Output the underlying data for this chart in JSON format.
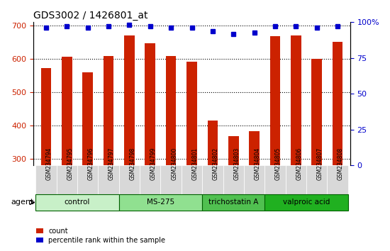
{
  "title": "GDS3002 / 1426801_at",
  "samples": [
    "GSM234794",
    "GSM234795",
    "GSM234796",
    "GSM234797",
    "GSM234798",
    "GSM234799",
    "GSM234800",
    "GSM234801",
    "GSM234802",
    "GSM234803",
    "GSM234804",
    "GSM234805",
    "GSM234806",
    "GSM234807",
    "GSM234808"
  ],
  "counts": [
    572,
    606,
    560,
    608,
    670,
    648,
    608,
    592,
    416,
    368,
    382,
    668,
    670,
    600,
    652
  ],
  "percentiles": [
    96,
    97,
    96,
    97,
    98,
    97,
    96,
    96,
    94,
    92,
    93,
    97,
    97,
    96,
    97
  ],
  "groups": [
    {
      "label": "control",
      "start": 0,
      "end": 4,
      "color": "#c8f0c8"
    },
    {
      "label": "MS-275",
      "start": 4,
      "end": 8,
      "color": "#90e090"
    },
    {
      "label": "trichostatin A",
      "start": 8,
      "end": 11,
      "color": "#50c050"
    },
    {
      "label": "valproic acid",
      "start": 11,
      "end": 15,
      "color": "#20b020"
    }
  ],
  "ylim_left": [
    280,
    710
  ],
  "ylim_right": [
    0,
    100
  ],
  "yticks_left": [
    300,
    400,
    500,
    600,
    700
  ],
  "yticks_right": [
    0,
    25,
    50,
    75,
    100
  ],
  "bar_color": "#cc2200",
  "dot_color": "#0000cc",
  "grid_color": "#000000",
  "background_color": "#ffffff",
  "bar_bottom": 280
}
